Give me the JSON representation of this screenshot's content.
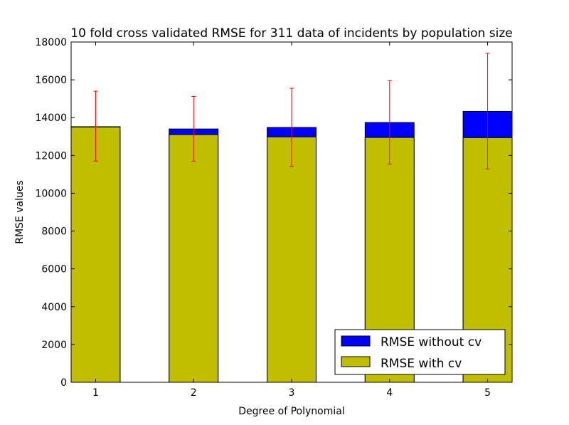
{
  "chart_data": {
    "type": "bar",
    "title": "10 fold cross validated RMSE for 311 data of incidents by population size",
    "xlabel": "Degree of Polynomial",
    "ylabel": "RMSE values",
    "categories": [
      "1",
      "2",
      "3",
      "4",
      "5"
    ],
    "ylim": [
      0,
      18000
    ],
    "yticks": [
      "0",
      "2000",
      "4000",
      "6000",
      "8000",
      "10000",
      "12000",
      "14000",
      "16000",
      "18000"
    ],
    "xlim": [
      0.75,
      5.25
    ],
    "bar_width": 0.5,
    "series": [
      {
        "name": "RMSE without cv",
        "color": "#0000ff",
        "values": [
          13520,
          13400,
          13480,
          13740,
          14330
        ]
      },
      {
        "name": "RMSE with cv",
        "color": "#bfbf00",
        "values": [
          13500,
          13100,
          12980,
          12950,
          12940
        ],
        "error_low": [
          11700,
          11700,
          11420,
          11540,
          11280
        ],
        "error_high": [
          15400,
          15120,
          15550,
          15960,
          17400
        ],
        "error_color": "#ff0000"
      }
    ],
    "legend_position": "lower-right",
    "grid": false
  }
}
